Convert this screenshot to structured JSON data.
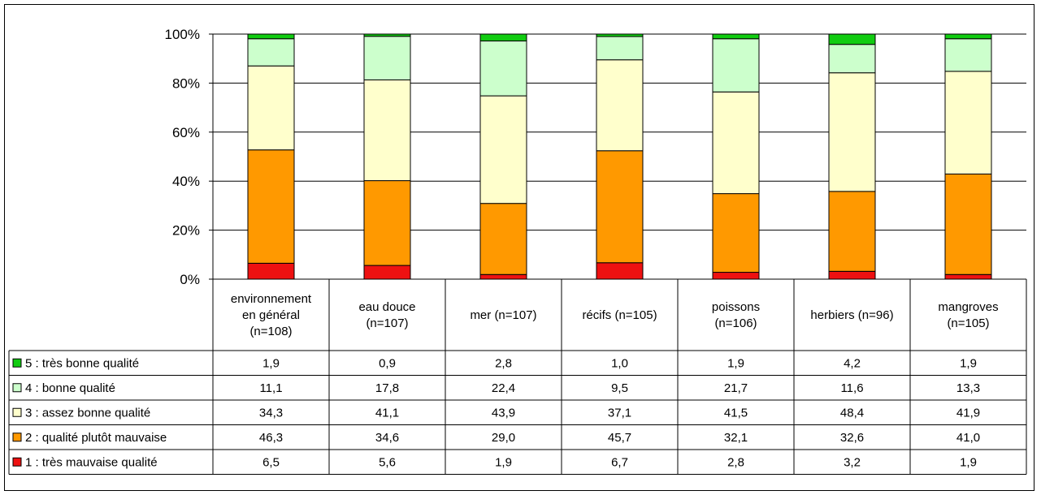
{
  "chart_data": {
    "type": "bar",
    "stacked": true,
    "percent": true,
    "categories": [
      [
        "environnement",
        "en général",
        "(n=108)"
      ],
      [
        "eau douce",
        "(n=107)"
      ],
      [
        "mer (n=107)"
      ],
      [
        "récifs (n=105)"
      ],
      [
        "poissons",
        "(n=106)"
      ],
      [
        "herbiers (n=96)"
      ],
      [
        "mangroves",
        "(n=105)"
      ]
    ],
    "yticks": [
      "0%",
      "20%",
      "40%",
      "60%",
      "80%",
      "100%"
    ],
    "ylim": [
      0,
      100
    ],
    "grid": true,
    "series": [
      {
        "name": "1 : très mauvaise qualité",
        "color": "#ee1111",
        "values": [
          6.5,
          5.6,
          1.9,
          6.7,
          2.8,
          3.2,
          1.9
        ],
        "labels": [
          "6,5",
          "5,6",
          "1,9",
          "6,7",
          "2,8",
          "3,2",
          "1,9"
        ]
      },
      {
        "name": "2 : qualité plutôt mauvaise",
        "color": "#ff9900",
        "values": [
          46.3,
          34.6,
          29.0,
          45.7,
          32.1,
          32.6,
          41.0
        ],
        "labels": [
          "46,3",
          "34,6",
          "29,0",
          "45,7",
          "32,1",
          "32,6",
          "41,0"
        ]
      },
      {
        "name": "3 : assez bonne qualité",
        "color": "#ffffcc",
        "values": [
          34.3,
          41.1,
          43.9,
          37.1,
          41.5,
          48.4,
          41.9
        ],
        "labels": [
          "34,3",
          "41,1",
          "43,9",
          "37,1",
          "41,5",
          "48,4",
          "41,9"
        ]
      },
      {
        "name": "4 : bonne qualité",
        "color": "#ccffcc",
        "values": [
          11.1,
          17.8,
          22.4,
          9.5,
          21.7,
          11.6,
          13.3
        ],
        "labels": [
          "11,1",
          "17,8",
          "22,4",
          "9,5",
          "21,7",
          "11,6",
          "13,3"
        ]
      },
      {
        "name": "5 : très bonne qualité",
        "color": "#11cc11",
        "values": [
          1.9,
          0.9,
          2.8,
          1.0,
          1.9,
          4.2,
          1.9
        ],
        "labels": [
          "1,9",
          "0,9",
          "2,8",
          "1,0",
          "1,9",
          "4,2",
          "1,9"
        ]
      }
    ]
  }
}
